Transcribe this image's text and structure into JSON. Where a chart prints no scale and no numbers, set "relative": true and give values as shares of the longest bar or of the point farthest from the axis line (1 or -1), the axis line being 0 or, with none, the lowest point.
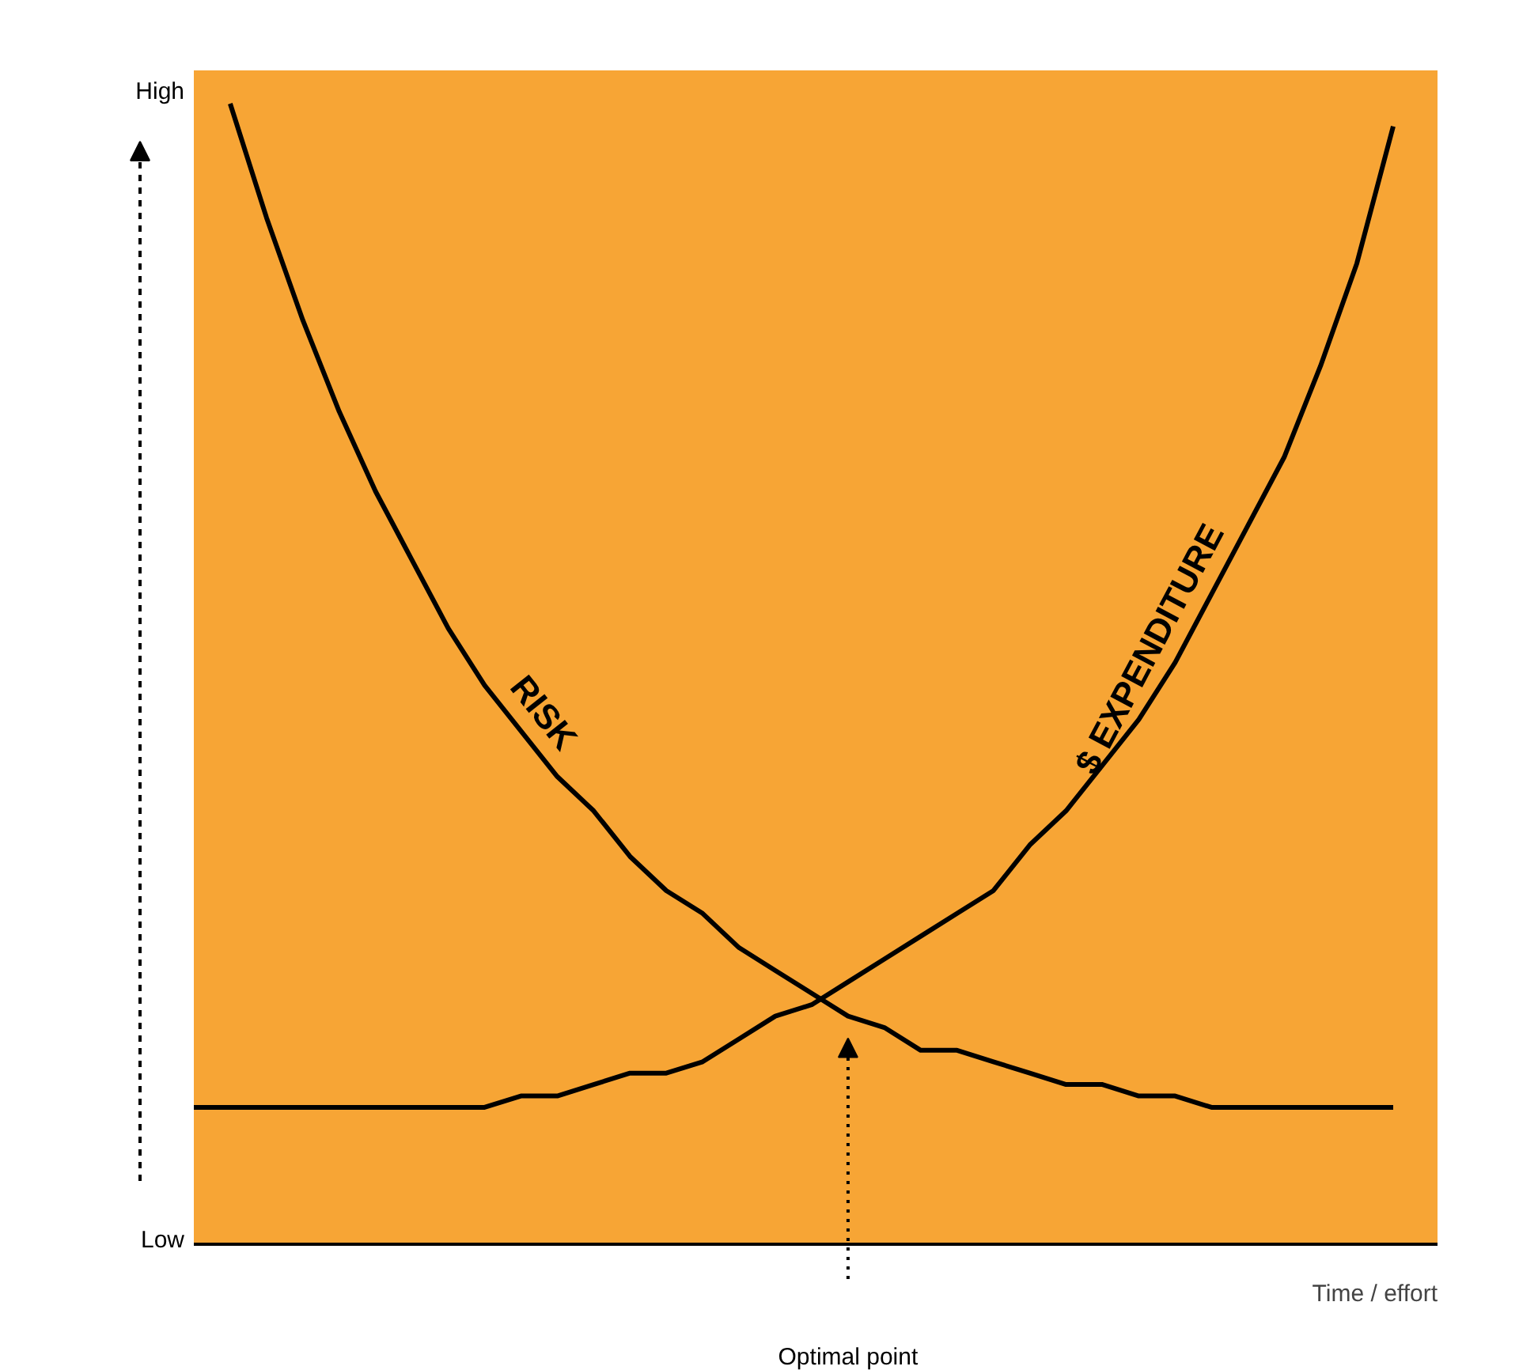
{
  "chart_data": {
    "type": "line",
    "relative": true,
    "xlabel": "Time / effort",
    "categories": [
      null,
      null,
      null,
      null,
      null,
      null,
      null,
      null,
      null,
      null,
      null,
      null,
      null,
      null,
      null,
      null,
      null,
      null,
      null,
      null,
      null,
      null,
      null,
      null,
      null,
      null,
      null,
      null,
      null,
      null,
      null,
      null,
      null,
      null
    ],
    "series": [
      {
        "name": "RISK",
        "color": "#000000",
        "values": [
          null,
          1.0,
          0.9,
          0.81,
          0.73,
          0.66,
          0.6,
          0.54,
          0.49,
          0.45,
          0.41,
          0.38,
          0.34,
          0.31,
          0.29,
          0.26,
          0.24,
          0.22,
          0.2,
          0.19,
          0.17,
          0.17,
          0.16,
          0.15,
          0.14,
          0.14,
          0.13,
          0.13,
          0.12,
          0.12,
          0.12,
          0.12,
          0.12,
          0.12
        ]
      },
      {
        "name": "$ EXPENDITURE",
        "color": "#000000",
        "values": [
          0.12,
          0.12,
          0.12,
          0.12,
          0.12,
          0.12,
          0.12,
          0.12,
          0.12,
          0.13,
          0.13,
          0.14,
          0.15,
          0.15,
          0.16,
          0.18,
          0.2,
          0.21,
          0.23,
          0.25,
          0.27,
          0.29,
          0.31,
          0.35,
          0.38,
          0.42,
          0.46,
          0.51,
          0.57,
          0.63,
          0.69,
          0.77,
          0.86,
          0.98
        ]
      }
    ],
    "annotations": [
      "High",
      "Low",
      "Optimal point"
    ],
    "grid": false,
    "legend": false,
    "marker": "none",
    "line_style": "solid"
  }
}
